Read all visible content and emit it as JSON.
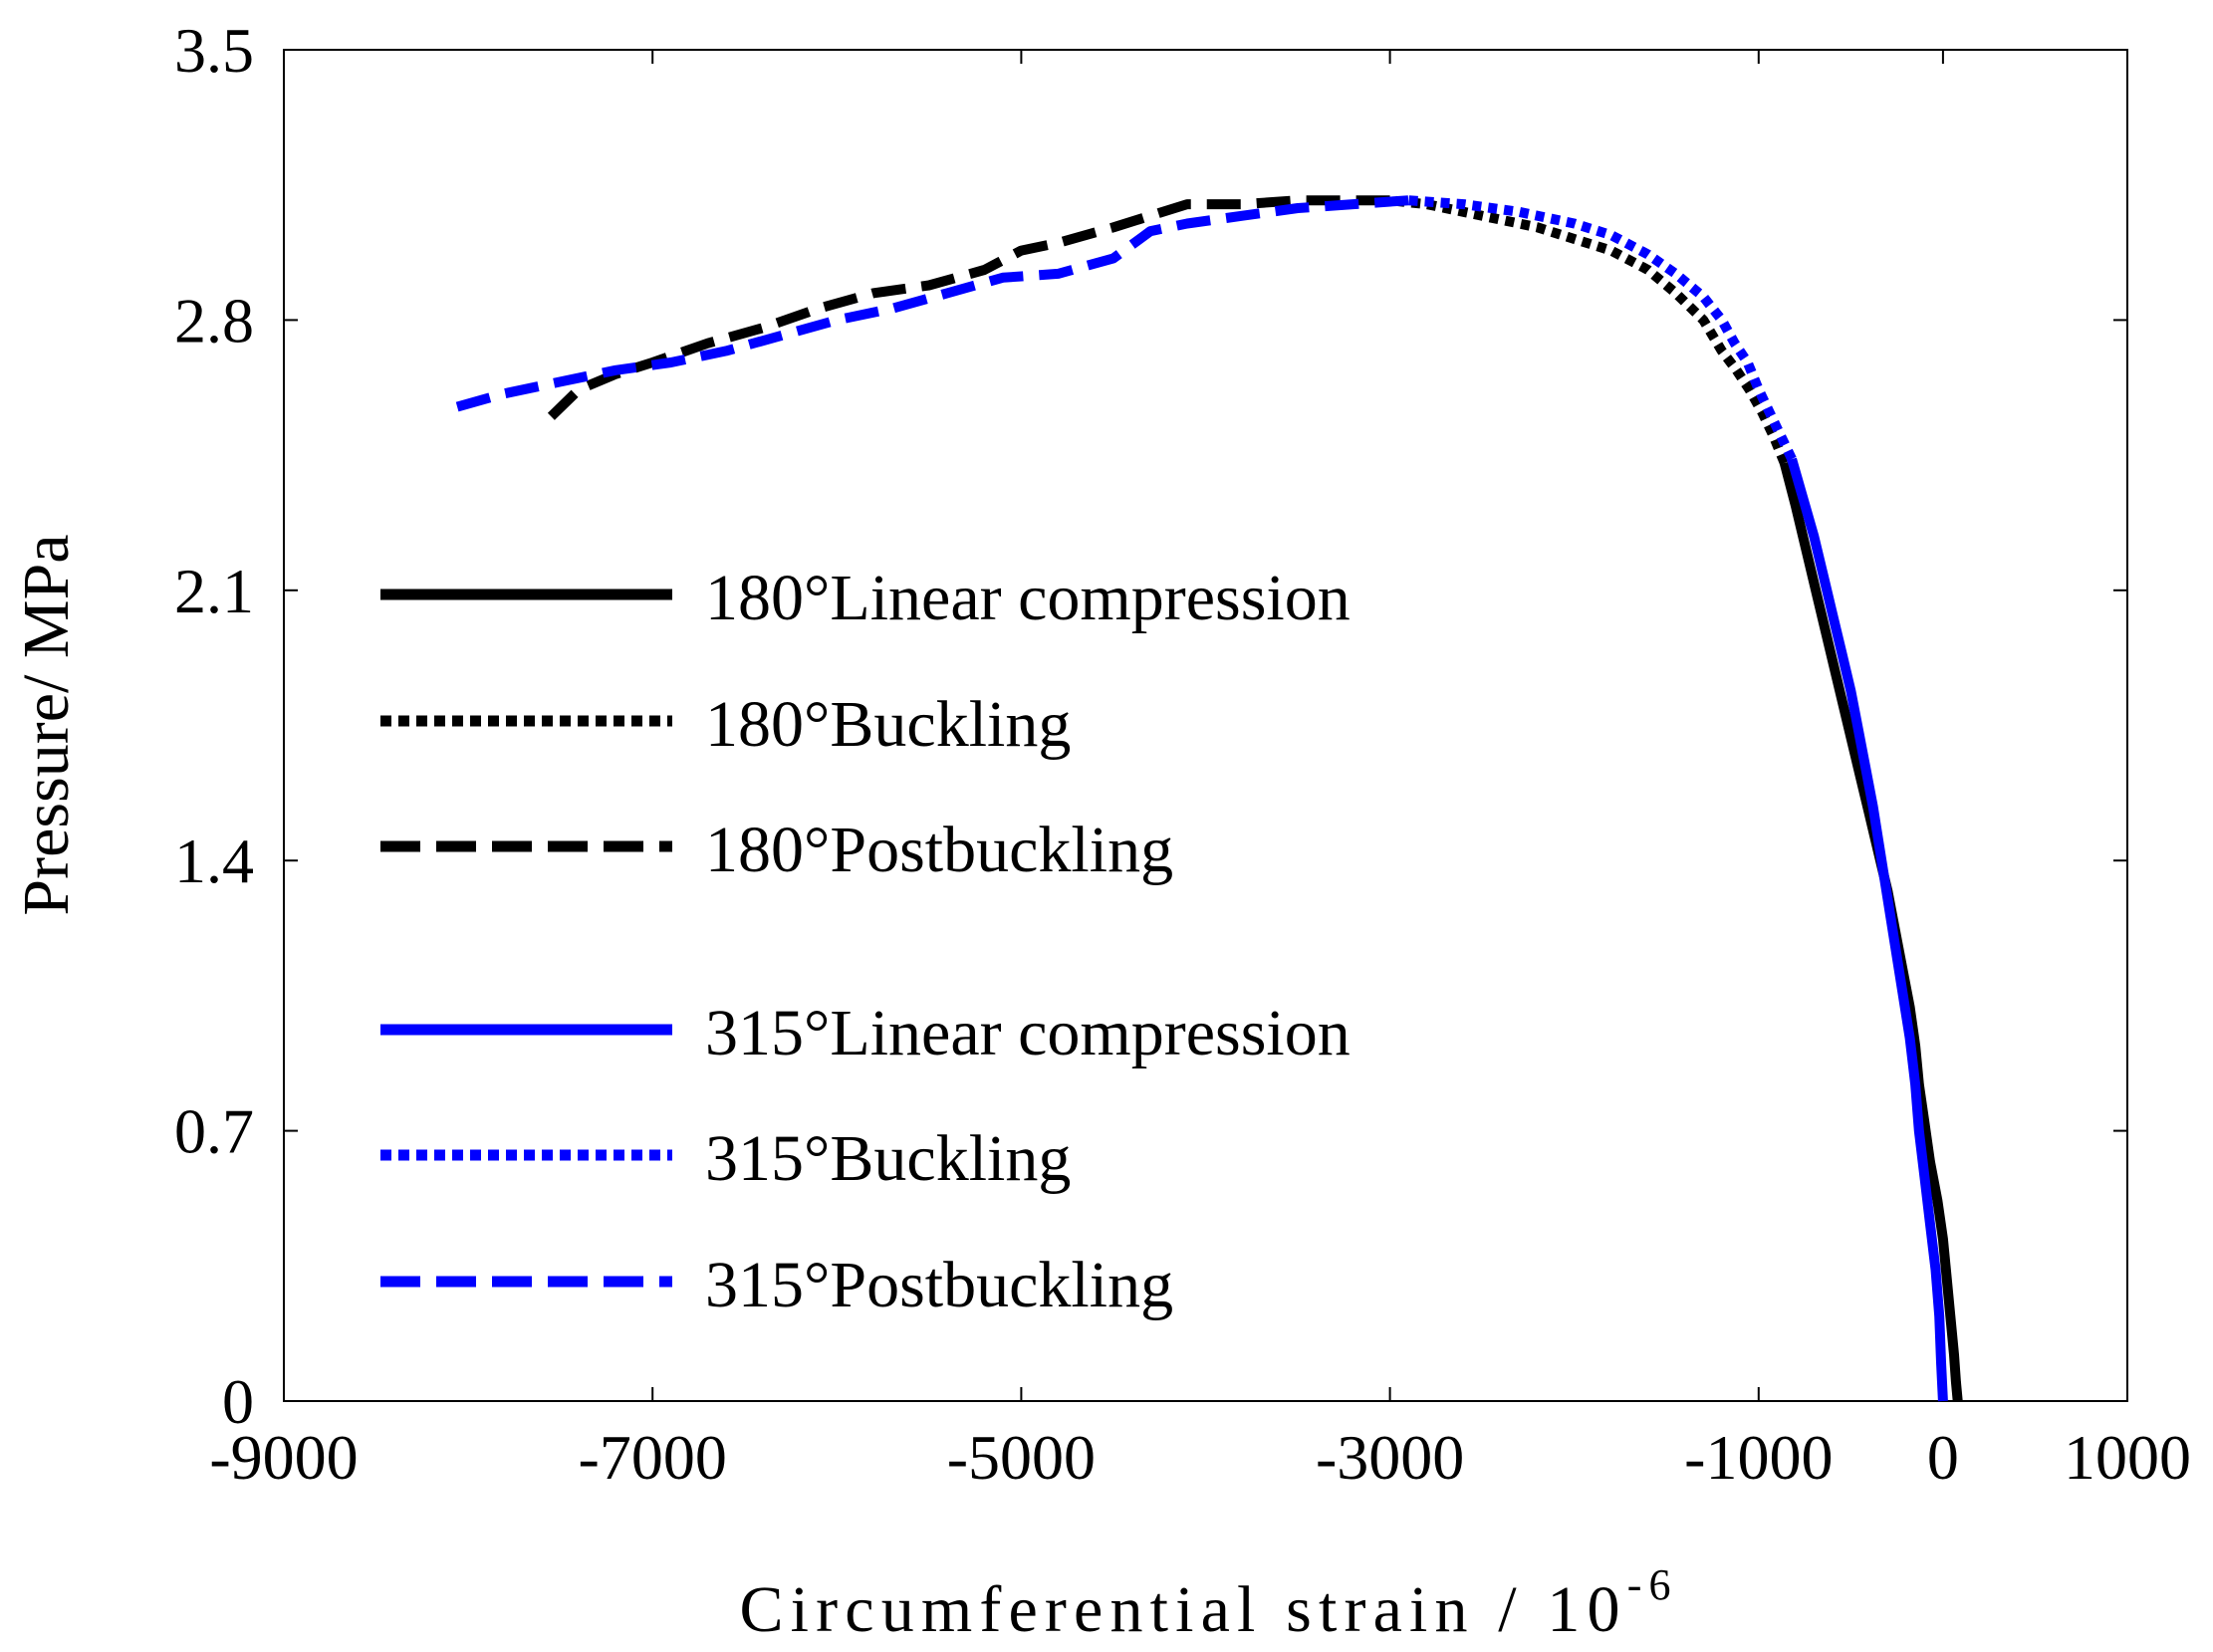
{
  "chart_data": {
    "type": "line",
    "title": "",
    "xlabel": "Circumferential strain / 10",
    "xlabel_superscript": "-6",
    "ylabel": "Pressure/ MPa",
    "xlim": [
      -9000,
      1000
    ],
    "ylim": [
      0,
      3.5
    ],
    "xticks": [
      -9000,
      -7000,
      -5000,
      -3000,
      -1000,
      0,
      1000
    ],
    "xtick_labels": [
      "-9000",
      "-7000",
      "-5000",
      "-3000",
      "-1000",
      "0",
      "1000"
    ],
    "yticks": [
      0,
      0.7,
      1.4,
      2.1,
      2.8,
      3.5
    ],
    "ytick_labels": [
      "0",
      "0.7",
      "1.4",
      "2.1",
      "2.8",
      "3.5"
    ],
    "grid": false,
    "legend_position": "center-left",
    "series": [
      {
        "name": "180°Linear compression",
        "color": "#000000",
        "style": "solid",
        "x": [
          80,
          70,
          60,
          40,
          20,
          0,
          -30,
          -70,
          -100,
          -130,
          -150,
          -180,
          -220,
          -260,
          -300,
          -350,
          -400,
          -450,
          -500,
          -560,
          -620,
          -680,
          -740,
          -800,
          -860
        ],
        "y": [
          0.0,
          0.05,
          0.12,
          0.22,
          0.32,
          0.42,
          0.52,
          0.62,
          0.72,
          0.82,
          0.92,
          1.02,
          1.12,
          1.22,
          1.32,
          1.42,
          1.52,
          1.62,
          1.72,
          1.84,
          1.96,
          2.08,
          2.2,
          2.32,
          2.43
        ]
      },
      {
        "name": "180°Buckling",
        "color": "#000000",
        "style": "dotted",
        "x": [
          -860,
          -920,
          -980,
          -1050,
          -1120,
          -1200,
          -1300,
          -1450,
          -1600,
          -1800,
          -2000,
          -2200,
          -2400,
          -2600,
          -2800,
          -3000
        ],
        "y": [
          2.43,
          2.5,
          2.56,
          2.62,
          2.67,
          2.72,
          2.8,
          2.87,
          2.93,
          2.98,
          3.01,
          3.04,
          3.06,
          3.08,
          3.1,
          3.11
        ]
      },
      {
        "name": "180°Postbuckling",
        "color": "#000000",
        "style": "dashed",
        "x": [
          -3000,
          -3200,
          -3500,
          -3800,
          -4100,
          -4300,
          -4500,
          -4800,
          -5000,
          -5200,
          -5500,
          -5800,
          -6100,
          -6400,
          -6700,
          -7000,
          -7200,
          -7400,
          -7550
        ],
        "y": [
          3.11,
          3.11,
          3.11,
          3.1,
          3.1,
          3.07,
          3.04,
          3.0,
          2.98,
          2.93,
          2.89,
          2.87,
          2.83,
          2.78,
          2.74,
          2.69,
          2.66,
          2.62,
          2.55
        ]
      },
      {
        "name": "315°Linear compression",
        "color": "#0000ff",
        "style": "solid",
        "x": [
          0,
          -10,
          -20,
          -40,
          -70,
          -100,
          -130,
          -150,
          -180,
          -220,
          -260,
          -300,
          -340,
          -380,
          -420,
          -460,
          -500,
          -550,
          -600,
          -650,
          -700,
          -760,
          -820
        ],
        "y": [
          0.0,
          0.1,
          0.22,
          0.34,
          0.46,
          0.58,
          0.7,
          0.82,
          0.94,
          1.06,
          1.18,
          1.3,
          1.42,
          1.54,
          1.64,
          1.74,
          1.84,
          1.94,
          2.04,
          2.14,
          2.24,
          2.34,
          2.44
        ]
      },
      {
        "name": "315°Buckling",
        "color": "#0000ff",
        "style": "dotted",
        "x": [
          -820,
          -880,
          -940,
          -1000,
          -1060,
          -1130,
          -1200,
          -1300,
          -1450,
          -1600,
          -1800,
          -2000,
          -2300,
          -2600,
          -2900
        ],
        "y": [
          2.44,
          2.5,
          2.56,
          2.62,
          2.69,
          2.74,
          2.8,
          2.86,
          2.92,
          2.97,
          3.02,
          3.05,
          3.08,
          3.1,
          3.11
        ]
      },
      {
        "name": "315°Postbuckling",
        "color": "#0000ff",
        "style": "dashed",
        "x": [
          -2900,
          -3200,
          -3500,
          -3800,
          -4100,
          -4300,
          -4500,
          -4800,
          -5100,
          -5400,
          -5700,
          -6000,
          -6300,
          -6600,
          -6900,
          -7200,
          -7500,
          -7800,
          -8100
        ],
        "y": [
          3.11,
          3.1,
          3.09,
          3.07,
          3.05,
          3.03,
          2.96,
          2.92,
          2.91,
          2.87,
          2.83,
          2.8,
          2.76,
          2.72,
          2.69,
          2.67,
          2.64,
          2.61,
          2.57
        ]
      }
    ]
  }
}
